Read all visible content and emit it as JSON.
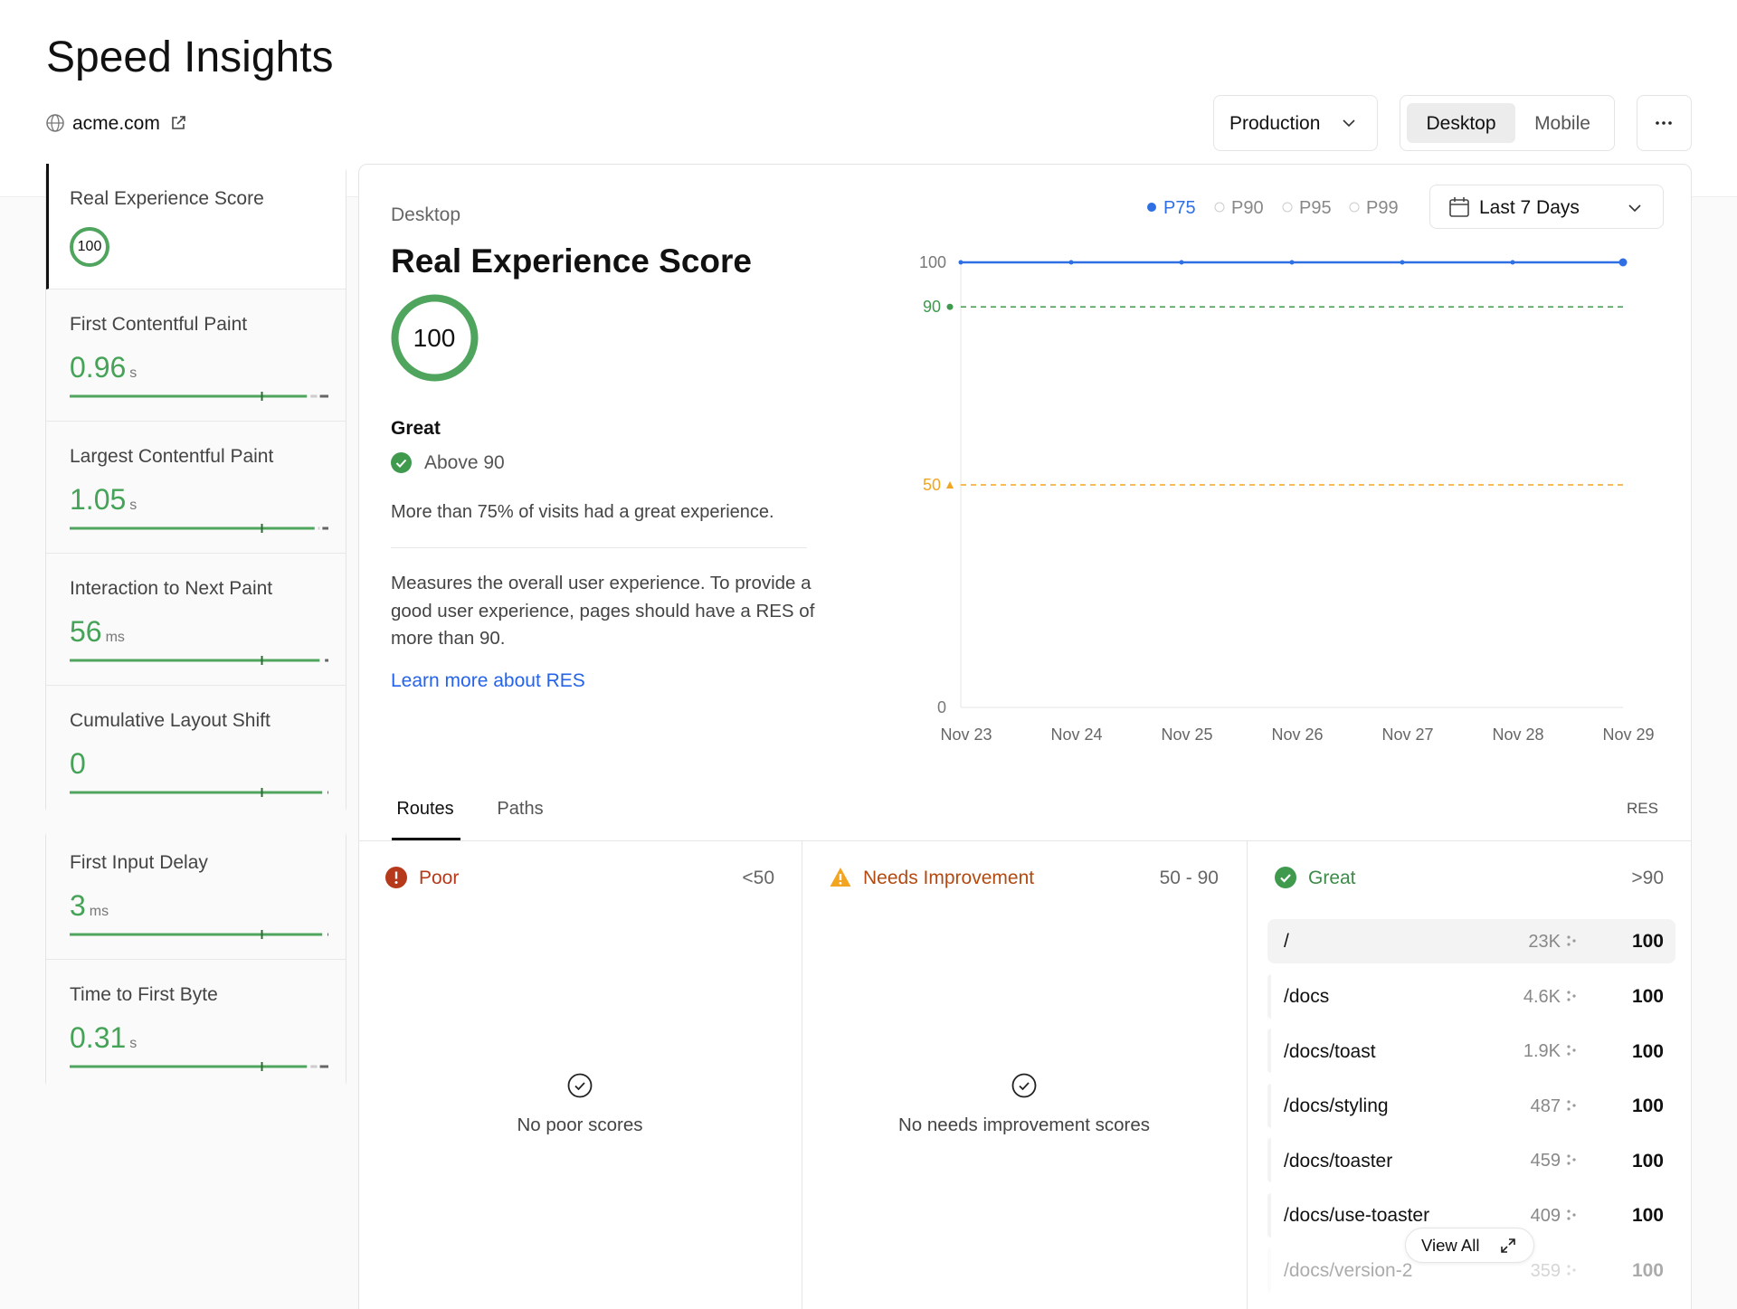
{
  "header": {
    "title": "Speed Insights",
    "domain": "acme.com",
    "environment": "Production",
    "devices": [
      "Desktop",
      "Mobile"
    ]
  },
  "sidebar": {
    "core": [
      {
        "name": "Real Experience Score",
        "value": 100
      },
      {
        "name": "First Contentful Paint",
        "value": 0.96,
        "unit": "s"
      },
      {
        "name": "Largest Contentful Paint",
        "value": 1.05,
        "unit": "s"
      },
      {
        "name": "Interaction to Next Paint",
        "value": 56,
        "unit": "ms"
      },
      {
        "name": "Cumulative Layout Shift",
        "value": 0
      }
    ],
    "other": [
      {
        "name": "First Input Delay",
        "value": 3,
        "unit": "ms"
      },
      {
        "name": "Time to First Byte",
        "value": 0.31,
        "unit": "s"
      }
    ]
  },
  "detail": {
    "device": "Desktop",
    "title": "Real Experience Score",
    "score": 100,
    "rating": "Great",
    "threshold": "Above 90",
    "summary": "More than 75% of visits had a great experience.",
    "description": "Measures the overall user experience. To provide a good user experience, pages should have a RES of more than 90.",
    "link": "Learn more about RES"
  },
  "chart_data": {
    "type": "line",
    "categories": [
      "Nov 23",
      "Nov 24",
      "Nov 25",
      "Nov 26",
      "Nov 27",
      "Nov 28",
      "Nov 29"
    ],
    "series": [
      {
        "name": "P75",
        "color": "#2f6fe4",
        "values": [
          100,
          100,
          100,
          100,
          100,
          100,
          100
        ]
      }
    ],
    "inactive_series": [
      "P90",
      "P95",
      "P99"
    ],
    "range": "Last 7 Days",
    "ylim": [
      0,
      100
    ],
    "yticks": [
      0,
      100
    ],
    "thresholds": [
      {
        "value": 90,
        "color": "#3f9a4e"
      },
      {
        "value": 50,
        "color": "#f2a521"
      }
    ]
  },
  "routes": {
    "tabs": [
      "Routes",
      "Paths"
    ],
    "column": "RES",
    "view_all": "View All",
    "groups": [
      {
        "name": "Poor",
        "range": "<50",
        "empty": "No poor scores"
      },
      {
        "name": "Needs Improvement",
        "range": "50 - 90",
        "empty": "No needs improvement scores"
      },
      {
        "name": "Great",
        "range": ">90",
        "rows": [
          {
            "path": "/",
            "visits": "23K",
            "score": 100
          },
          {
            "path": "/docs",
            "visits": "4.6K",
            "score": 100
          },
          {
            "path": "/docs/toast",
            "visits": "1.9K",
            "score": 100
          },
          {
            "path": "/docs/styling",
            "visits": "487",
            "score": 100
          },
          {
            "path": "/docs/toaster",
            "visits": "459",
            "score": 100
          },
          {
            "path": "/docs/use-toaster",
            "visits": "409",
            "score": 100
          },
          {
            "path": "/docs/version-2",
            "visits": "359",
            "score": 100
          }
        ]
      }
    ]
  }
}
